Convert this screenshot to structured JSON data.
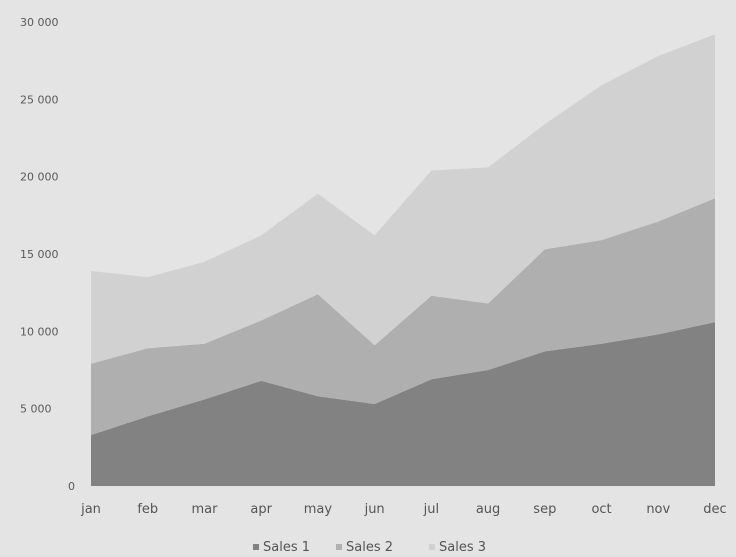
{
  "chart_data": {
    "type": "area",
    "stacked": true,
    "categories": [
      "jan",
      "feb",
      "mar",
      "apr",
      "may",
      "jun",
      "jul",
      "aug",
      "sep",
      "oct",
      "nov",
      "dec"
    ],
    "x_tick_labels": [
      "jan",
      "feb",
      "mar",
      "apr",
      "may",
      "jun",
      "jul",
      "aug",
      "sep",
      "oct",
      "nov",
      "dec"
    ],
    "y_tick_labels": [
      "0",
      "5 000",
      "10 000",
      "15 000",
      "20 000",
      "25 000",
      "30 000"
    ],
    "ylim": [
      0,
      30000
    ],
    "grid": false,
    "legend_position": "bottom",
    "series": [
      {
        "name": "Sales 1",
        "color": "#828282",
        "values": [
          3300,
          4500,
          5600,
          6800,
          5800,
          5300,
          6900,
          7500,
          8700,
          9200,
          9800,
          10600
        ]
      },
      {
        "name": "Sales 2",
        "color": "#afafaf",
        "values": [
          4600,
          4400,
          3600,
          3900,
          6600,
          3800,
          5400,
          4300,
          6600,
          6700,
          7300,
          8000
        ]
      },
      {
        "name": "Sales 3",
        "color": "#d1d1d1",
        "values": [
          6000,
          4600,
          5300,
          5500,
          6500,
          7100,
          8100,
          8800,
          8100,
          10000,
          10700,
          10600
        ]
      }
    ]
  }
}
